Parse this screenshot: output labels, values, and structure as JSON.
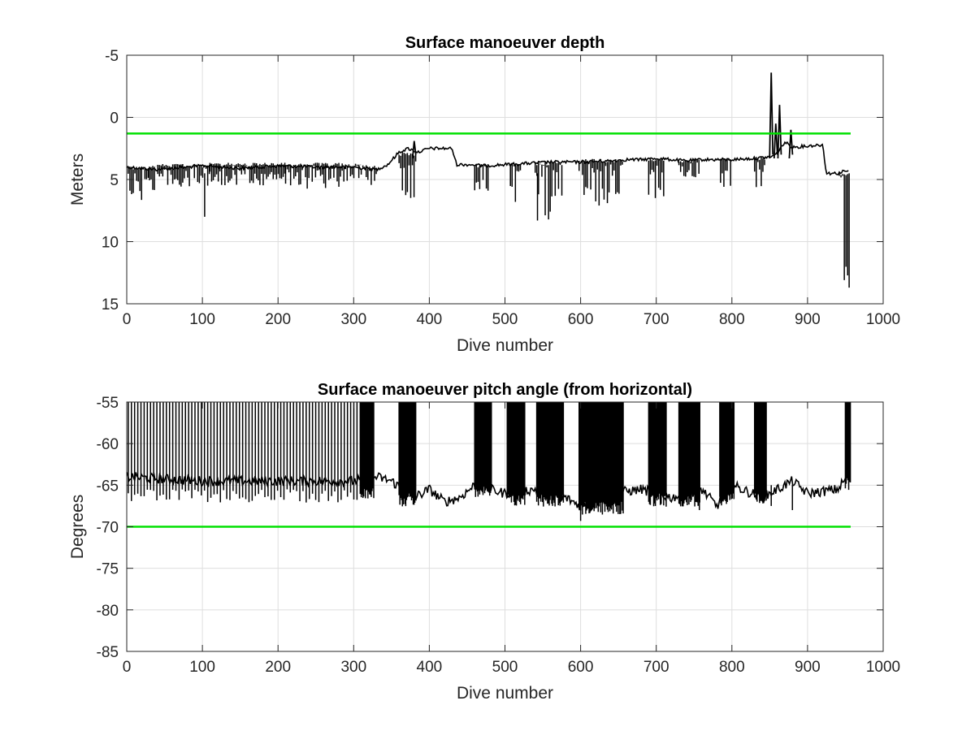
{
  "chart_data": [
    {
      "type": "line",
      "title": "Surface manoeuver depth",
      "xlabel": "Dive number",
      "ylabel": "Meters",
      "xlim": [
        0,
        1000
      ],
      "ylim": [
        -5,
        15
      ],
      "y_reversed": true,
      "grid": true,
      "xticks": [
        "0",
        "100",
        "200",
        "300",
        "400",
        "500",
        "600",
        "700",
        "800",
        "900",
        "1000"
      ],
      "yticks": [
        "-5",
        "0",
        "5",
        "10",
        "15"
      ],
      "colors": {
        "data": "#000000",
        "threshold": "#00e000"
      },
      "series": [
        {
          "kind": "threshold",
          "x": [
            0,
            957
          ],
          "y": [
            1.3,
            1.3
          ]
        },
        {
          "kind": "baseline",
          "x": [
            0,
            40,
            100,
            150,
            200,
            250,
            300,
            330,
            345,
            360,
            372,
            385,
            400,
            430,
            436,
            455,
            470,
            500,
            530,
            560,
            600,
            640,
            660,
            680,
            700,
            720,
            740,
            760,
            800,
            830,
            850,
            858,
            870,
            880,
            900,
            920,
            925,
            940,
            950,
            955
          ],
          "y": [
            4.0,
            4.2,
            3.9,
            4.1,
            3.9,
            4.0,
            4.0,
            4.2,
            3.8,
            2.8,
            2.5,
            2.8,
            2.5,
            2.5,
            3.8,
            3.8,
            3.9,
            3.8,
            3.7,
            3.6,
            3.6,
            3.5,
            3.4,
            3.4,
            3.3,
            3.4,
            3.5,
            3.4,
            3.4,
            3.3,
            3.2,
            3.0,
            2.0,
            2.4,
            2.3,
            2.2,
            4.5,
            4.5,
            4.3,
            4.4
          ]
        },
        {
          "kind": "spikes",
          "ranges": [
            {
              "x": [
                2,
                30
              ],
              "low": 5.0,
              "high": 6.7,
              "base": 4.1
            },
            {
              "x": [
                30,
                110
              ],
              "low": 4.6,
              "high": 6.0,
              "base": 3.9
            },
            {
              "x": [
                110,
                210
              ],
              "low": 4.5,
              "high": 5.5,
              "base": 3.8
            },
            {
              "x": [
                210,
                310
              ],
              "low": 4.5,
              "high": 6.0,
              "base": 3.8
            },
            {
              "x": [
                310,
                330
              ],
              "low": 4.3,
              "high": 5.5,
              "base": 4.0
            },
            {
              "x": [
                360,
                383
              ],
              "low": 5.5,
              "high": 6.7,
              "base": 3.0
            },
            {
              "x": [
                460,
                478
              ],
              "low": 5.0,
              "high": 6.0,
              "base": 3.9
            },
            {
              "x": [
                505,
                522
              ],
              "low": 5.5,
              "high": 7.0,
              "base": 3.8
            },
            {
              "x": [
                540,
                577
              ],
              "low": 5.5,
              "high": 8.3,
              "base": 3.7
            },
            {
              "x": [
                598,
                657
              ],
              "low": 5.5,
              "high": 7.3,
              "base": 3.5
            },
            {
              "x": [
                690,
                713
              ],
              "low": 5.0,
              "high": 6.5,
              "base": 3.4
            },
            {
              "x": [
                730,
                758
              ],
              "low": 4.5,
              "high": 5.3,
              "base": 3.5
            },
            {
              "x": [
                785,
                800
              ],
              "low": 5.0,
              "high": 5.6,
              "base": 3.4
            },
            {
              "x": [
                830,
                845
              ],
              "low": 5.5,
              "high": 6.3,
              "base": 3.3
            },
            {
              "x": [
                942,
                955
              ],
              "low": 12.0,
              "high": 13.7,
              "base": 4.5
            }
          ],
          "peaks": [
            {
              "x": 103,
              "y": 8.0
            },
            {
              "x": 543,
              "y": 8.3
            },
            {
              "x": 955,
              "y": 13.7
            }
          ]
        },
        {
          "kind": "upward_spikes",
          "points": [
            {
              "x": 852,
              "y": -3.6
            },
            {
              "x": 858,
              "y": 0.5
            },
            {
              "x": 863,
              "y": -1.0
            },
            {
              "x": 878,
              "y": 1.0
            },
            {
              "x": 380,
              "y": 1.9
            }
          ]
        }
      ]
    },
    {
      "type": "line",
      "title": "Surface manoeuver pitch angle (from horizontal)",
      "xlabel": "Dive number",
      "ylabel": "Degrees",
      "xlim": [
        0,
        1000
      ],
      "ylim": [
        -85,
        -55
      ],
      "grid": true,
      "xticks": [
        "0",
        "100",
        "200",
        "300",
        "400",
        "500",
        "600",
        "700",
        "800",
        "900",
        "1000"
      ],
      "yticks": [
        "-55",
        "-60",
        "-65",
        "-70",
        "-75",
        "-80",
        "-85"
      ],
      "colors": {
        "data": "#000000",
        "threshold": "#00e000"
      },
      "series": [
        {
          "kind": "threshold",
          "x": [
            0,
            957
          ],
          "y": [
            -70,
            -70
          ]
        },
        {
          "kind": "baseline",
          "x": [
            0,
            100,
            200,
            300,
            330,
            350,
            380,
            400,
            420,
            440,
            460,
            500,
            540,
            580,
            600,
            640,
            680,
            700,
            720,
            760,
            780,
            800,
            840,
            880,
            900,
            940,
            952
          ],
          "y": [
            -64,
            -64.5,
            -64.5,
            -64.5,
            -64,
            -64.5,
            -66.5,
            -65.5,
            -67,
            -66.5,
            -65,
            -66,
            -65.5,
            -66.5,
            -67.5,
            -66,
            -65.5,
            -66,
            -66.5,
            -65.5,
            -67.5,
            -65,
            -66.5,
            -64.5,
            -66,
            -65.5,
            -64
          ]
        },
        {
          "kind": "spikes",
          "ranges": [
            {
              "x": [
                2,
                310
              ],
              "low": -55,
              "high": -55,
              "base": -65.5
            },
            {
              "x": [
                310,
                327
              ],
              "low": -55,
              "high": -55,
              "base": -65
            },
            {
              "x": [
                360,
                383
              ],
              "low": -55,
              "high": -55,
              "base": -66
            },
            {
              "x": [
                460,
                483
              ],
              "low": -55,
              "high": -55,
              "base": -65
            },
            {
              "x": [
                503,
                527
              ],
              "low": -55,
              "high": -55,
              "base": -66
            },
            {
              "x": [
                542,
                578
              ],
              "low": -55,
              "high": -55,
              "base": -66
            },
            {
              "x": [
                598,
                657
              ],
              "low": -55,
              "high": -55,
              "base": -67
            },
            {
              "x": [
                690,
                714
              ],
              "low": -55,
              "high": -55,
              "base": -66
            },
            {
              "x": [
                730,
                758
              ],
              "low": -55,
              "high": -55,
              "base": -66
            },
            {
              "x": [
                784,
                803
              ],
              "low": -55,
              "high": -55,
              "base": -66
            },
            {
              "x": [
                830,
                846
              ],
              "low": -55,
              "high": -55,
              "base": -66
            },
            {
              "x": [
                950,
                957
              ],
              "low": -55,
              "high": -55,
              "base": -64
            }
          ],
          "peaks": [
            {
              "x": 600,
              "y": -69.3
            },
            {
              "x": 757,
              "y": -68
            },
            {
              "x": 852,
              "y": -67.5
            },
            {
              "x": 880,
              "y": -68
            }
          ]
        }
      ]
    }
  ]
}
